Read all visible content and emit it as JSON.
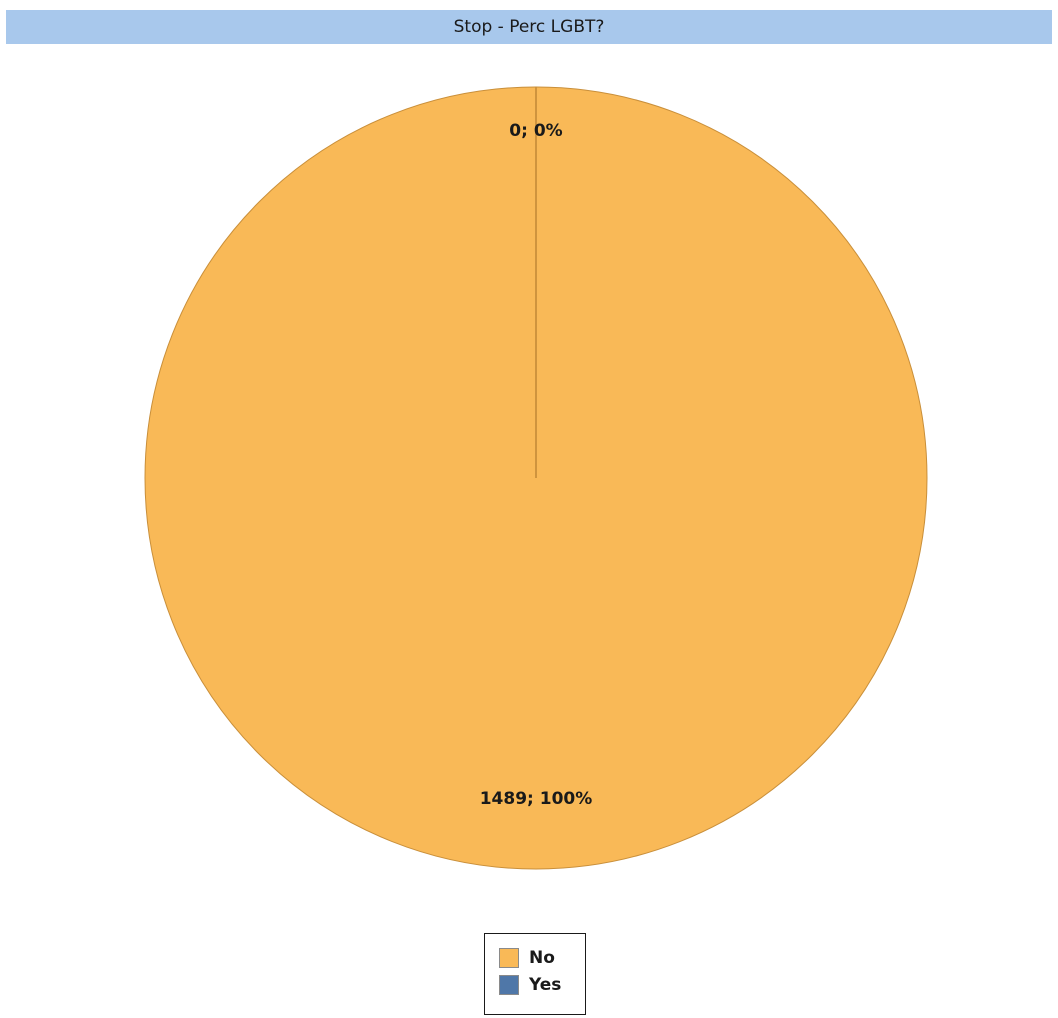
{
  "chart_data": {
    "type": "pie",
    "title": "Stop - Perc LGBT?",
    "categories": [
      "No",
      "Yes"
    ],
    "values": [
      1489,
      0
    ],
    "percentages": [
      100,
      0
    ],
    "data_labels": [
      "1489; 100%",
      "0; 0%"
    ],
    "colors": [
      "#f9b957",
      "#4f77a8"
    ],
    "legend": {
      "placement": "bottom",
      "entries": [
        "No",
        "Yes"
      ]
    }
  }
}
